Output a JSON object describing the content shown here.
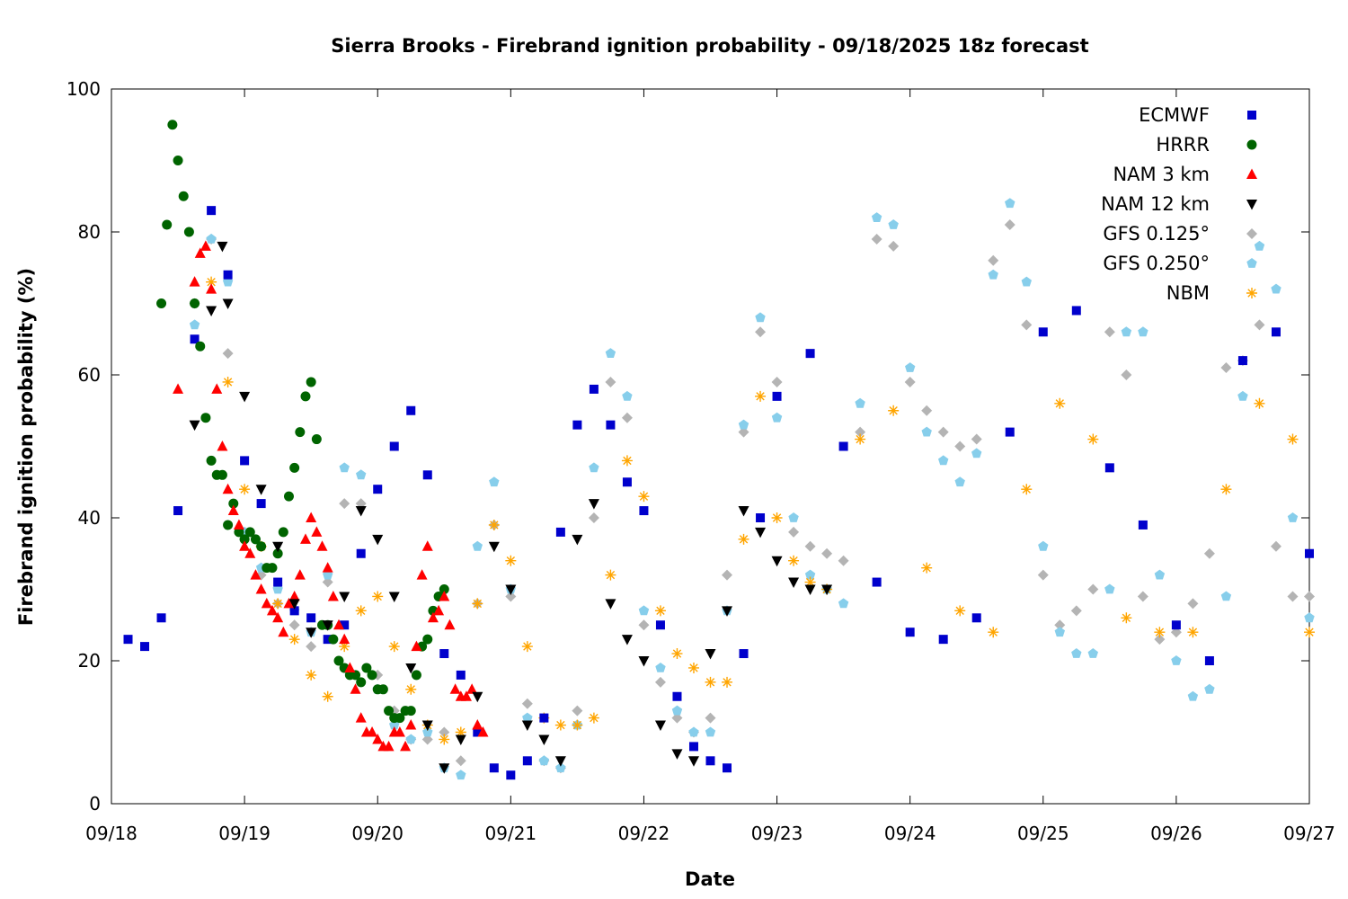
{
  "chart_data": {
    "type": "scatter",
    "title": "Sierra Brooks - Firebrand ignition probability - 09/18/2025 18z forecast",
    "xlabel": "Date",
    "ylabel": "Firebrand ignition probability (%)",
    "xlim": [
      "09/18",
      "09/27"
    ],
    "ylim": [
      0,
      100
    ],
    "x_ticks": [
      "09/18",
      "09/19",
      "09/20",
      "09/21",
      "09/22",
      "09/23",
      "09/24",
      "09/25",
      "09/26",
      "09/27"
    ],
    "y_ticks": [
      0,
      20,
      40,
      60,
      80,
      100
    ],
    "grid": false,
    "legend_position": "top-right",
    "series": [
      {
        "name": "ECMWF",
        "marker": "square",
        "color": "#0000cc",
        "x": [
          "09/18 03:00",
          "09/18 06:00",
          "09/18 09:00",
          "09/18 12:00",
          "09/18 15:00",
          "09/18 18:00",
          "09/18 21:00",
          "09/19 00:00",
          "09/19 03:00",
          "09/19 06:00",
          "09/19 09:00",
          "09/19 12:00",
          "09/19 15:00",
          "09/19 18:00",
          "09/19 21:00",
          "09/20 00:00",
          "09/20 03:00",
          "09/20 06:00",
          "09/20 09:00",
          "09/20 12:00",
          "09/20 15:00",
          "09/20 18:00",
          "09/20 21:00",
          "09/21 00:00",
          "09/21 03:00",
          "09/21 06:00",
          "09/21 09:00",
          "09/21 12:00",
          "09/21 15:00",
          "09/21 18:00",
          "09/21 21:00",
          "09/22 00:00",
          "09/22 03:00",
          "09/22 06:00",
          "09/22 09:00",
          "09/22 12:00",
          "09/22 15:00",
          "09/22 18:00",
          "09/22 21:00",
          "09/23 00:00",
          "09/23 06:00",
          "09/23 12:00",
          "09/23 18:00",
          "09/24 00:00",
          "09/24 06:00",
          "09/24 12:00",
          "09/24 18:00",
          "09/25 00:00",
          "09/25 06:00",
          "09/25 12:00",
          "09/25 18:00",
          "09/26 00:00",
          "09/26 06:00",
          "09/26 12:00",
          "09/26 18:00",
          "09/27 00:00"
        ],
        "y": [
          23,
          22,
          26,
          41,
          65,
          83,
          74,
          48,
          42,
          31,
          27,
          26,
          23,
          25,
          35,
          44,
          50,
          55,
          46,
          21,
          18,
          10,
          5,
          4,
          6,
          12,
          38,
          53,
          58,
          53,
          45,
          41,
          25,
          15,
          8,
          6,
          5,
          21,
          40,
          57,
          63,
          50,
          31,
          24,
          23,
          26,
          52,
          66,
          69,
          47,
          39,
          25,
          20,
          62,
          66,
          35
        ]
      },
      {
        "name": "HRRR",
        "marker": "circle",
        "color": "#006400",
        "x": [
          "09/18 09:00",
          "09/18 10:00",
          "09/18 11:00",
          "09/18 12:00",
          "09/18 13:00",
          "09/18 14:00",
          "09/18 15:00",
          "09/18 16:00",
          "09/18 17:00",
          "09/18 18:00",
          "09/18 19:00",
          "09/18 20:00",
          "09/18 21:00",
          "09/18 22:00",
          "09/18 23:00",
          "09/19 00:00",
          "09/19 01:00",
          "09/19 02:00",
          "09/19 03:00",
          "09/19 04:00",
          "09/19 05:00",
          "09/19 06:00",
          "09/19 07:00",
          "09/19 08:00",
          "09/19 09:00",
          "09/19 10:00",
          "09/19 11:00",
          "09/19 12:00",
          "09/19 13:00",
          "09/19 14:00",
          "09/19 15:00",
          "09/19 16:00",
          "09/19 17:00",
          "09/19 18:00",
          "09/19 19:00",
          "09/19 20:00",
          "09/19 21:00",
          "09/19 22:00",
          "09/19 23:00",
          "09/20 00:00",
          "09/20 01:00",
          "09/20 02:00",
          "09/20 03:00",
          "09/20 04:00",
          "09/20 05:00",
          "09/20 06:00",
          "09/20 07:00",
          "09/20 08:00",
          "09/20 09:00",
          "09/20 10:00",
          "09/20 11:00",
          "09/20 12:00"
        ],
        "y": [
          70,
          81,
          95,
          90,
          85,
          80,
          70,
          64,
          54,
          48,
          46,
          46,
          39,
          42,
          38,
          37,
          38,
          37,
          36,
          33,
          33,
          35,
          38,
          43,
          47,
          52,
          57,
          59,
          51,
          25,
          25,
          23,
          20,
          19,
          18,
          18,
          17,
          19,
          18,
          16,
          16,
          13,
          12,
          12,
          13,
          13,
          18,
          22,
          23,
          27,
          29,
          30
        ]
      },
      {
        "name": "NAM 3 km",
        "marker": "triangle-up",
        "color": "#ff0000",
        "x": [
          "09/18 12:00",
          "09/18 15:00",
          "09/18 16:00",
          "09/18 17:00",
          "09/18 18:00",
          "09/18 19:00",
          "09/18 20:00",
          "09/18 21:00",
          "09/18 22:00",
          "09/18 23:00",
          "09/19 00:00",
          "09/19 01:00",
          "09/19 02:00",
          "09/19 03:00",
          "09/19 04:00",
          "09/19 05:00",
          "09/19 06:00",
          "09/19 07:00",
          "09/19 08:00",
          "09/19 09:00",
          "09/19 10:00",
          "09/19 11:00",
          "09/19 12:00",
          "09/19 13:00",
          "09/19 14:00",
          "09/19 15:00",
          "09/19 16:00",
          "09/19 17:00",
          "09/19 18:00",
          "09/19 19:00",
          "09/19 20:00",
          "09/19 21:00",
          "09/19 22:00",
          "09/19 23:00",
          "09/20 00:00",
          "09/20 01:00",
          "09/20 02:00",
          "09/20 03:00",
          "09/20 04:00",
          "09/20 05:00",
          "09/20 06:00",
          "09/20 07:00",
          "09/20 08:00",
          "09/20 09:00",
          "09/20 10:00",
          "09/20 11:00",
          "09/20 12:00",
          "09/20 13:00",
          "09/20 14:00",
          "09/20 15:00",
          "09/20 16:00",
          "09/20 17:00",
          "09/20 18:00",
          "09/20 19:00"
        ],
        "y": [
          58,
          73,
          77,
          78,
          72,
          58,
          50,
          44,
          41,
          39,
          36,
          35,
          32,
          30,
          28,
          27,
          26,
          24,
          28,
          29,
          32,
          37,
          40,
          38,
          36,
          33,
          29,
          25,
          23,
          19,
          16,
          12,
          10,
          10,
          9,
          8,
          8,
          10,
          10,
          8,
          11,
          22,
          32,
          36,
          26,
          27,
          29,
          25,
          16,
          15,
          15,
          16,
          11,
          10
        ]
      },
      {
        "name": "NAM 12 km",
        "marker": "triangle-down",
        "color": "#000000",
        "x": [
          "09/18 15:00",
          "09/18 18:00",
          "09/18 20:00",
          "09/18 21:00",
          "09/19 00:00",
          "09/19 03:00",
          "09/19 06:00",
          "09/19 09:00",
          "09/19 12:00",
          "09/19 15:00",
          "09/19 18:00",
          "09/19 21:00",
          "09/20 00:00",
          "09/20 03:00",
          "09/20 06:00",
          "09/20 09:00",
          "09/20 12:00",
          "09/20 15:00",
          "09/20 18:00",
          "09/20 21:00",
          "09/21 00:00",
          "09/21 03:00",
          "09/21 06:00",
          "09/21 09:00",
          "09/21 12:00",
          "09/21 15:00",
          "09/21 18:00",
          "09/21 21:00",
          "09/22 00:00",
          "09/22 03:00",
          "09/22 06:00",
          "09/22 09:00",
          "09/22 12:00",
          "09/22 15:00",
          "09/22 18:00",
          "09/22 21:00",
          "09/23 00:00",
          "09/23 03:00",
          "09/23 06:00",
          "09/23 09:00"
        ],
        "y": [
          53,
          69,
          78,
          70,
          57,
          44,
          36,
          28,
          24,
          25,
          29,
          41,
          37,
          29,
          19,
          11,
          5,
          9,
          15,
          36,
          30,
          11,
          9,
          6,
          37,
          42,
          28,
          23,
          20,
          11,
          7,
          6,
          21,
          27,
          41,
          38,
          34,
          31,
          30,
          30
        ]
      },
      {
        "name": "GFS 0.125°",
        "marker": "diamond",
        "color": "#b4b4b4",
        "x": [
          "09/18 15:00",
          "09/18 18:00",
          "09/18 21:00",
          "09/19 00:00",
          "09/19 03:00",
          "09/19 06:00",
          "09/19 09:00",
          "09/19 12:00",
          "09/19 15:00",
          "09/19 18:00",
          "09/19 21:00",
          "09/20 00:00",
          "09/20 03:00",
          "09/20 06:00",
          "09/20 09:00",
          "09/20 12:00",
          "09/20 15:00",
          "09/20 18:00",
          "09/20 21:00",
          "09/21 00:00",
          "09/21 03:00",
          "09/21 06:00",
          "09/21 09:00",
          "09/21 12:00",
          "09/21 15:00",
          "09/21 18:00",
          "09/21 21:00",
          "09/22 00:00",
          "09/22 03:00",
          "09/22 06:00",
          "09/22 09:00",
          "09/22 12:00",
          "09/22 15:00",
          "09/22 18:00",
          "09/22 21:00",
          "09/23 00:00",
          "09/23 03:00",
          "09/23 06:00",
          "09/23 09:00",
          "09/23 12:00",
          "09/23 15:00",
          "09/23 18:00",
          "09/23 21:00",
          "09/24 00:00",
          "09/24 03:00",
          "09/24 06:00",
          "09/24 09:00",
          "09/24 12:00",
          "09/24 15:00",
          "09/24 18:00",
          "09/24 21:00",
          "09/25 00:00",
          "09/25 03:00",
          "09/25 06:00",
          "09/25 09:00",
          "09/25 12:00",
          "09/25 15:00",
          "09/25 18:00",
          "09/25 21:00",
          "09/26 00:00",
          "09/26 03:00",
          "09/26 06:00",
          "09/26 09:00",
          "09/26 12:00",
          "09/26 15:00",
          "09/26 18:00",
          "09/26 21:00",
          "09/27 00:00"
        ],
        "y": [
          70,
          79,
          63,
          37,
          32,
          28,
          25,
          22,
          31,
          42,
          42,
          18,
          13,
          9,
          9,
          10,
          6,
          28,
          39,
          29,
          14,
          6,
          5,
          13,
          40,
          59,
          54,
          25,
          17,
          12,
          10,
          12,
          32,
          52,
          66,
          59,
          38,
          36,
          35,
          34,
          52,
          79,
          78,
          59,
          55,
          52,
          50,
          51,
          76,
          81,
          67,
          32,
          25,
          27,
          30,
          66,
          60,
          29,
          23,
          24,
          28,
          35,
          61,
          62,
          67,
          36,
          29,
          29
        ]
      },
      {
        "name": "GFS 0.250°",
        "marker": "pentagon",
        "color": "#87ceeb",
        "x": [
          "09/18 15:00",
          "09/18 18:00",
          "09/18 21:00",
          "09/19 00:00",
          "09/19 03:00",
          "09/19 06:00",
          "09/19 09:00",
          "09/19 12:00",
          "09/19 15:00",
          "09/19 18:00",
          "09/19 21:00",
          "09/20 00:00",
          "09/20 03:00",
          "09/20 06:00",
          "09/20 09:00",
          "09/20 12:00",
          "09/20 15:00",
          "09/20 18:00",
          "09/20 21:00",
          "09/21 00:00",
          "09/21 03:00",
          "09/21 06:00",
          "09/21 09:00",
          "09/21 12:00",
          "09/21 15:00",
          "09/21 18:00",
          "09/21 21:00",
          "09/22 00:00",
          "09/22 03:00",
          "09/22 06:00",
          "09/22 09:00",
          "09/22 12:00",
          "09/22 15:00",
          "09/22 18:00",
          "09/22 21:00",
          "09/23 00:00",
          "09/23 03:00",
          "09/23 06:00",
          "09/23 09:00",
          "09/23 12:00",
          "09/23 15:00",
          "09/23 18:00",
          "09/23 21:00",
          "09/24 00:00",
          "09/24 03:00",
          "09/24 06:00",
          "09/24 09:00",
          "09/24 12:00",
          "09/24 15:00",
          "09/24 18:00",
          "09/24 21:00",
          "09/25 00:00",
          "09/25 03:00",
          "09/25 06:00",
          "09/25 09:00",
          "09/25 12:00",
          "09/25 15:00",
          "09/25 18:00",
          "09/25 21:00",
          "09/26 00:00",
          "09/26 03:00",
          "09/26 06:00",
          "09/26 09:00",
          "09/26 12:00",
          "09/26 15:00",
          "09/26 18:00",
          "09/26 21:00",
          "09/27 00:00"
        ],
        "y": [
          67,
          79,
          73,
          38,
          33,
          30,
          27,
          24,
          32,
          47,
          46,
          16,
          11,
          9,
          10,
          5,
          4,
          36,
          45,
          30,
          12,
          6,
          5,
          11,
          47,
          63,
          57,
          27,
          19,
          13,
          10,
          10,
          27,
          53,
          68,
          54,
          40,
          32,
          30,
          28,
          56,
          82,
          81,
          61,
          52,
          48,
          45,
          49,
          74,
          84,
          73,
          36,
          24,
          21,
          21,
          30,
          66,
          66,
          32,
          20,
          15,
          16,
          29,
          57,
          78,
          72,
          40,
          26
        ]
      },
      {
        "name": "NBM",
        "marker": "star",
        "color": "#ffa500",
        "x": [
          "09/18 18:00",
          "09/18 21:00",
          "09/19 00:00",
          "09/19 03:00",
          "09/19 06:00",
          "09/19 09:00",
          "09/19 12:00",
          "09/19 15:00",
          "09/19 18:00",
          "09/19 21:00",
          "09/20 00:00",
          "09/20 03:00",
          "09/20 06:00",
          "09/20 09:00",
          "09/20 12:00",
          "09/20 15:00",
          "09/20 18:00",
          "09/20 21:00",
          "09/21 00:00",
          "09/21 03:00",
          "09/21 06:00",
          "09/21 09:00",
          "09/21 12:00",
          "09/21 15:00",
          "09/21 18:00",
          "09/21 21:00",
          "09/22 00:00",
          "09/22 03:00",
          "09/22 06:00",
          "09/22 09:00",
          "09/22 12:00",
          "09/22 15:00",
          "09/22 18:00",
          "09/22 21:00",
          "09/23 00:00",
          "09/23 03:00",
          "09/23 06:00",
          "09/23 09:00",
          "09/23 15:00",
          "09/23 21:00",
          "09/24 03:00",
          "09/24 09:00",
          "09/24 15:00",
          "09/24 21:00",
          "09/25 03:00",
          "09/25 09:00",
          "09/25 15:00",
          "09/25 21:00",
          "09/26 03:00",
          "09/26 09:00",
          "09/26 15:00",
          "09/26 21:00",
          "09/27 00:00"
        ],
        "y": [
          73,
          59,
          44,
          36,
          28,
          23,
          18,
          15,
          22,
          27,
          29,
          22,
          16,
          11,
          9,
          10,
          28,
          39,
          34,
          22,
          12,
          11,
          11,
          12,
          32,
          48,
          43,
          27,
          21,
          19,
          17,
          17,
          37,
          57,
          40,
          34,
          31,
          30,
          51,
          55,
          33,
          27,
          24,
          44,
          56,
          51,
          26,
          24,
          24,
          44,
          56,
          51,
          24
        ]
      }
    ]
  }
}
